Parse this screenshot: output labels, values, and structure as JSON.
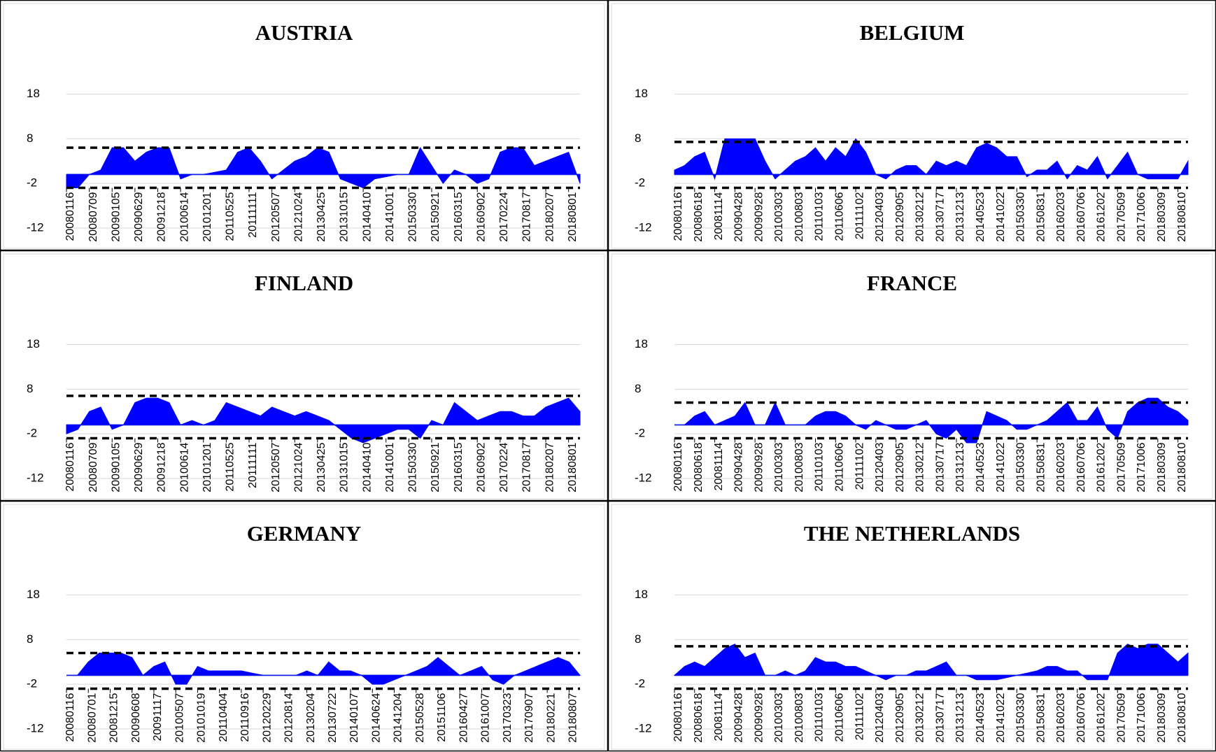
{
  "chart_data": [
    {
      "type": "area",
      "title": "AUSTRIA",
      "color": "#0000ff",
      "categories": [
        "20080116",
        null,
        "20080709",
        null,
        "20090105",
        null,
        "20090629",
        null,
        "20091218",
        null,
        "20100614",
        null,
        "20101201",
        null,
        "20110525",
        null,
        "20111111",
        null,
        "20120507",
        null,
        "20121024",
        null,
        "20130425",
        null,
        "20131015",
        null,
        "20140410",
        null,
        "20141001",
        null,
        "20150330",
        null,
        "20150921",
        null,
        "20160315",
        null,
        "20160902",
        null,
        "20170224",
        null,
        "20170817",
        null,
        "20180207",
        null,
        "20180801",
        null
      ],
      "values": [
        -3,
        -3,
        0,
        1,
        6,
        6,
        3,
        5,
        6,
        6,
        -1,
        0,
        0,
        0.5,
        1,
        5,
        6,
        3,
        -1,
        1,
        3,
        4,
        6,
        5,
        -1,
        -2,
        -3,
        -1,
        -0.5,
        0,
        0,
        6,
        2,
        -2,
        1,
        0,
        -2,
        -1,
        5,
        6,
        6,
        2,
        3,
        4,
        5,
        -2
      ],
      "thresholds": [
        6,
        -3
      ],
      "ylim": [
        -12,
        22
      ],
      "yticks": [
        18,
        8,
        -2,
        -12
      ],
      "grid": true
    },
    {
      "type": "area",
      "title": "BELGIUM",
      "color": "#0000ff",
      "categories": [
        "20080116",
        null,
        "20080618",
        null,
        "20081114",
        null,
        "20090428",
        null,
        "20090928",
        null,
        "20100303",
        null,
        "20100803",
        null,
        "20110103",
        null,
        "20110606",
        null,
        "20111102",
        null,
        "20120403",
        null,
        "20120905",
        null,
        "20130212",
        null,
        "20130717",
        null,
        "20131213",
        null,
        "20140523",
        null,
        "20141022",
        null,
        "20150330",
        null,
        "20150831",
        null,
        "20160203",
        null,
        "20160706",
        null,
        "20161202",
        null,
        "20170509",
        null,
        "20171006",
        null,
        "20180309",
        null,
        "20180810",
        null
      ],
      "values": [
        1,
        2,
        4,
        5,
        -1,
        8,
        8,
        8,
        8,
        3,
        -1,
        1,
        3,
        4,
        6,
        3,
        6,
        4,
        8,
        5,
        0,
        -1,
        1,
        2,
        2,
        0,
        3,
        2,
        3,
        2,
        6,
        7,
        6,
        4,
        4,
        -0.5,
        1,
        1,
        3,
        -1,
        2,
        1,
        4,
        -1,
        2,
        5,
        0,
        -1,
        -1,
        -1,
        -1,
        3
      ],
      "thresholds": [
        7.3,
        -3
      ],
      "ylim": [
        -12,
        22
      ],
      "yticks": [
        18,
        8,
        -2,
        -12
      ],
      "grid": true
    },
    {
      "type": "area",
      "title": "FINLAND",
      "color": "#0000ff",
      "categories": [
        "20080116",
        null,
        "20080709",
        null,
        "20090105",
        null,
        "20090629",
        null,
        "20091218",
        null,
        "20100614",
        null,
        "20101201",
        null,
        "20110525",
        null,
        "20111111",
        null,
        "20120507",
        null,
        "20121024",
        null,
        "20130425",
        null,
        "20131015",
        null,
        "20140410",
        null,
        "20141001",
        null,
        "20150330",
        null,
        "20150921",
        null,
        "20160315",
        null,
        "20160902",
        null,
        "20170224",
        null,
        "20170817",
        null,
        "20180207",
        null,
        "20180801",
        null
      ],
      "values": [
        -2,
        -1,
        3,
        4,
        -1,
        0,
        5,
        6,
        6,
        5,
        0,
        1,
        0,
        1,
        5,
        4,
        3,
        2,
        4,
        3,
        2,
        3,
        2,
        1,
        -1,
        -3,
        -4,
        -3,
        -2,
        -1,
        -1,
        -3,
        1,
        0,
        5,
        3,
        1,
        2,
        3,
        3,
        2,
        2,
        4,
        5,
        6,
        3
      ],
      "thresholds": [
        6.5,
        -3
      ],
      "ylim": [
        -12,
        22
      ],
      "yticks": [
        18,
        8,
        -2,
        -12
      ],
      "grid": true
    },
    {
      "type": "area",
      "title": "FRANCE",
      "color": "#0000ff",
      "categories": [
        "20080116",
        null,
        "20080618",
        null,
        "20081114",
        null,
        "20090428",
        null,
        "20090928",
        null,
        "20100303",
        null,
        "20100803",
        null,
        "20110103",
        null,
        "20110606",
        null,
        "20111102",
        null,
        "20120403",
        null,
        "20120905",
        null,
        "20130212",
        null,
        "20130717",
        null,
        "20131213",
        null,
        "20140523",
        null,
        "20141022",
        null,
        "20150330",
        null,
        "20150831",
        null,
        "20160203",
        null,
        "20160706",
        null,
        "20161202",
        null,
        "20170509",
        null,
        "20171006",
        null,
        "20180309",
        null,
        "20180810",
        null
      ],
      "values": [
        0,
        0,
        2,
        3,
        0,
        1,
        2,
        5,
        0,
        0,
        5,
        0,
        0,
        0,
        2,
        3,
        3,
        2,
        0,
        -1,
        1,
        0,
        -1,
        -1,
        0,
        1,
        -2,
        -3,
        -1,
        -4,
        -4,
        3,
        2,
        1,
        -1,
        -1,
        0,
        1,
        3,
        5,
        1,
        1,
        4,
        -1,
        -3,
        3,
        5,
        6,
        6,
        4,
        3,
        1
      ],
      "thresholds": [
        5,
        -3
      ],
      "ylim": [
        -12,
        22
      ],
      "yticks": [
        18,
        8,
        -2,
        -12
      ],
      "grid": true
    },
    {
      "type": "area",
      "title": "GERMANY",
      "color": "#0000ff",
      "categories": [
        "20080116",
        null,
        "20080701",
        null,
        "20081215",
        null,
        "20090608",
        null,
        "20091117",
        null,
        "20100507",
        null,
        "20101019",
        null,
        "20110404",
        null,
        "20110916",
        null,
        "20120229",
        null,
        "20120814",
        null,
        "20130204",
        null,
        "20130722",
        null,
        "20140107",
        null,
        "20140624",
        null,
        "20141204",
        null,
        "20150528",
        null,
        "20151106",
        null,
        "20160427",
        null,
        "20161007",
        null,
        "20170323",
        null,
        "20170907",
        null,
        "20180221",
        null,
        "20180807",
        null
      ],
      "values": [
        0,
        0,
        3,
        5,
        5,
        5,
        4,
        0,
        2,
        3,
        -2,
        -2,
        2,
        1,
        1,
        1,
        1,
        0.5,
        0,
        0,
        0,
        0,
        1,
        0,
        3,
        1,
        1,
        0,
        -2,
        -2,
        -1,
        0,
        1,
        2,
        4,
        2,
        0,
        1,
        2,
        -1,
        -2,
        0,
        1,
        2,
        3,
        4,
        3,
        0
      ],
      "thresholds": [
        5,
        -3
      ],
      "ylim": [
        -12,
        22
      ],
      "yticks": [
        18,
        8,
        -2,
        -12
      ],
      "grid": true
    },
    {
      "type": "area",
      "title": "THE NETHERLANDS",
      "color": "#0000ff",
      "categories": [
        "20080116",
        null,
        "20080618",
        null,
        "20081114",
        null,
        "20090428",
        null,
        "20090928",
        null,
        "20100303",
        null,
        "20100803",
        null,
        "20110103",
        null,
        "20110606",
        null,
        "20111102",
        null,
        "20120403",
        null,
        "20120905",
        null,
        "20130212",
        null,
        "20130717",
        null,
        "20131213",
        null,
        "20140523",
        null,
        "20141022",
        null,
        "20150330",
        null,
        "20150831",
        null,
        "20160203",
        null,
        "20160706",
        null,
        "20161202",
        null,
        "20170509",
        null,
        "20171006",
        null,
        "20180309",
        null,
        "20180810",
        null
      ],
      "values": [
        0,
        2,
        3,
        2,
        4,
        6,
        7,
        4,
        5,
        0,
        0,
        1,
        0,
        1,
        4,
        3,
        3,
        2,
        2,
        1,
        0,
        -1,
        0,
        0,
        1,
        1,
        2,
        3,
        0,
        0,
        -1,
        -1,
        -1,
        -0.5,
        0,
        0.5,
        1,
        2,
        2,
        1,
        1,
        -1,
        -1,
        -1,
        5,
        7,
        6,
        7,
        7,
        5,
        3,
        5
      ],
      "thresholds": [
        6.5,
        -3
      ],
      "ylim": [
        -12,
        22
      ],
      "yticks": [
        18,
        8,
        -2,
        -12
      ],
      "grid": true
    }
  ]
}
